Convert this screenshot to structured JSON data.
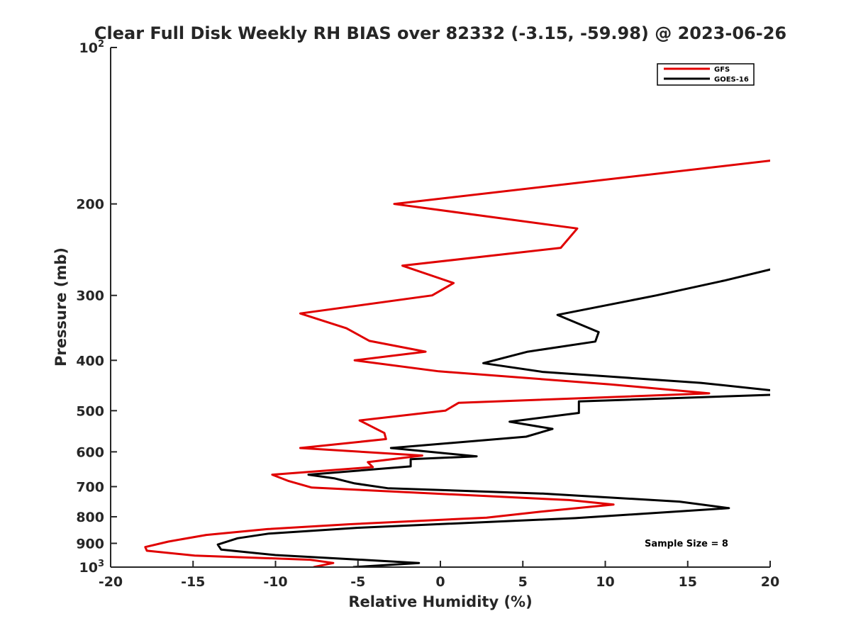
{
  "chart_data": {
    "type": "line",
    "title": "Clear Full Disk Weekly RH BIAS over 82332 (-3.15, -59.98) @ 2023-06-26",
    "xlabel": "Relative Humidity (%)",
    "ylabel": "Pressure (mb)",
    "xlim": [
      -20,
      20
    ],
    "ylim": [
      100,
      1000
    ],
    "y_scale": "log",
    "y_reversed": true,
    "x_ticks": [
      -20,
      -15,
      -10,
      -5,
      0,
      5,
      10,
      15,
      20
    ],
    "x_tick_labels": [
      "-20",
      "-15",
      "-10",
      "-5",
      "0",
      "5",
      "10",
      "15",
      "20"
    ],
    "y_ticks": [
      200,
      300,
      400,
      500,
      600,
      700,
      800,
      900
    ],
    "y_tick_labels": [
      "200",
      "300",
      "400",
      "500",
      "600",
      "700",
      "800",
      "900"
    ],
    "y_ends": [
      {
        "value": 100,
        "base": "10",
        "exp": "2"
      },
      {
        "value": 1000,
        "base": "10",
        "exp": "3"
      }
    ],
    "grid": false,
    "legend_position": "top-right",
    "annotation": "Sample Size = 8",
    "series": [
      {
        "name": "GFS",
        "color": "#e00000",
        "points": [
          [
            20.1,
            165
          ],
          [
            -2.8,
            200
          ],
          [
            8.3,
            223
          ],
          [
            7.3,
            243
          ],
          [
            -2.3,
            263
          ],
          [
            0.8,
            284
          ],
          [
            -0.5,
            300
          ],
          [
            -8.5,
            325
          ],
          [
            -5.7,
            347
          ],
          [
            -4.3,
            367
          ],
          [
            -0.9,
            385
          ],
          [
            -5.2,
            400
          ],
          [
            -0.1,
            420
          ],
          [
            10.3,
            445
          ],
          [
            16.3,
            463
          ],
          [
            1.1,
            483
          ],
          [
            0.3,
            500
          ],
          [
            -4.9,
            522
          ],
          [
            -3.4,
            552
          ],
          [
            -3.3,
            567
          ],
          [
            -8.5,
            590
          ],
          [
            -1.1,
            610
          ],
          [
            -4.4,
            628
          ],
          [
            -4.1,
            642
          ],
          [
            -10.2,
            664
          ],
          [
            -9.2,
            683
          ],
          [
            -7.8,
            703
          ],
          [
            7.8,
            743
          ],
          [
            10.5,
            758
          ],
          [
            6.1,
            782
          ],
          [
            2.8,
            803
          ],
          [
            -5.5,
            827
          ],
          [
            -10.5,
            845
          ],
          [
            -14.2,
            867
          ],
          [
            -16.5,
            893
          ],
          [
            -17.9,
            915
          ],
          [
            -17.8,
            930
          ],
          [
            -14.9,
            950
          ],
          [
            -7.9,
            968
          ],
          [
            -6.5,
            982
          ],
          [
            -7.7,
            1000
          ]
        ]
      },
      {
        "name": "GOES-16",
        "color": "#000000",
        "points": [
          [
            20.1,
            267
          ],
          [
            17.2,
            281
          ],
          [
            13.1,
            300
          ],
          [
            7.1,
            327
          ],
          [
            9.6,
            353
          ],
          [
            9.4,
            368
          ],
          [
            5.3,
            385
          ],
          [
            2.6,
            405
          ],
          [
            6.2,
            421
          ],
          [
            15.8,
            442
          ],
          [
            20.1,
            457
          ],
          [
            20.1,
            466
          ],
          [
            8.4,
            480
          ],
          [
            8.4,
            505
          ],
          [
            4.2,
            525
          ],
          [
            6.8,
            542
          ],
          [
            5.2,
            561
          ],
          [
            -3.0,
            590
          ],
          [
            2.2,
            612
          ],
          [
            -1.8,
            620
          ],
          [
            -1.8,
            640
          ],
          [
            -8.0,
            664
          ],
          [
            -6.4,
            675
          ],
          [
            -5.2,
            690
          ],
          [
            -3.2,
            705
          ],
          [
            6.2,
            722
          ],
          [
            14.5,
            748
          ],
          [
            17.5,
            770
          ],
          [
            8.2,
            805
          ],
          [
            -5.0,
            840
          ],
          [
            -10.4,
            862
          ],
          [
            -12.3,
            880
          ],
          [
            -13.5,
            905
          ],
          [
            -13.3,
            925
          ],
          [
            -10.0,
            948
          ],
          [
            -5.5,
            965
          ],
          [
            -1.3,
            982
          ],
          [
            -5.3,
            1000
          ]
        ]
      }
    ]
  }
}
